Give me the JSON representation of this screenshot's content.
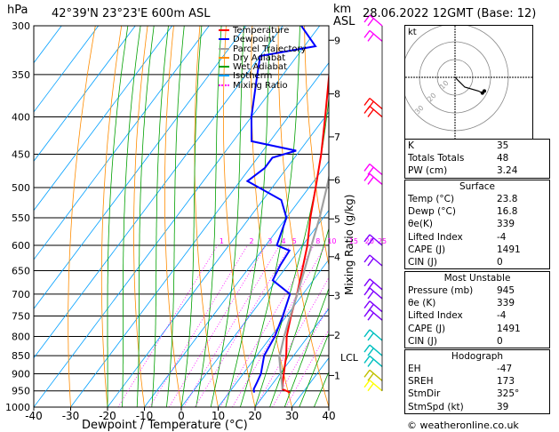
{
  "header": {
    "pressure_unit": "hPa",
    "station": "42°39'N  23°23'E  600m  ASL",
    "km_label": "km",
    "asl_label": "ASL",
    "date": "28.06.2022  12GMT  (Base: 12)"
  },
  "chart_data": {
    "type": "line",
    "title": "",
    "xlabel": "Dewpoint / Temperature (°C)",
    "ylabel": "hPa",
    "mixing_ratio_axis_label": "Mixing Ratio (g/kg)",
    "x_ticks": [
      -40,
      -30,
      -20,
      -10,
      0,
      10,
      20,
      30,
      40
    ],
    "y_ticks": [
      300,
      350,
      400,
      450,
      500,
      550,
      600,
      650,
      700,
      750,
      800,
      850,
      900,
      950,
      1000
    ],
    "xlim": [
      -40,
      40
    ],
    "ylim": [
      1000,
      300
    ],
    "y_scale": "log",
    "km_ticks": [
      {
        "label": "9",
        "p": 314
      },
      {
        "label": "8",
        "p": 372
      },
      {
        "label": "7",
        "p": 426
      },
      {
        "label": "6",
        "p": 488
      },
      {
        "label": "5",
        "p": 552
      },
      {
        "label": "4",
        "p": 622
      },
      {
        "label": "3",
        "p": 703
      },
      {
        "label": "2",
        "p": 797
      },
      {
        "label": "1",
        "p": 905
      }
    ],
    "lcl_label": "LCL",
    "lcl_p": 855,
    "mixing_ratio_labels": [
      "1",
      "2",
      "3",
      "4",
      "5",
      "8",
      "10",
      "15",
      "20",
      "25"
    ],
    "mixing_ratio_values": [
      1,
      2,
      3,
      4,
      5,
      8,
      10,
      15,
      20,
      25
    ],
    "legend": [
      "Temperature",
      "Dewpoint",
      "Parcel Trajectory",
      "Dry Adiabat",
      "Wet Adiabat",
      "Isotherm",
      "Mixing Ratio"
    ],
    "legend_colors": [
      "#ff0000",
      "#0000ff",
      "#a0a0a0",
      "#ff8c00",
      "#00a000",
      "#00a0ff",
      "#ff00ff"
    ],
    "series": [
      {
        "name": "Temperature",
        "color": "#ff0000",
        "points": [
          [
            955,
            26.5
          ],
          [
            945,
            23.8
          ],
          [
            925,
            22.5
          ],
          [
            900,
            21.0
          ],
          [
            850,
            18.0
          ],
          [
            800,
            14.2
          ],
          [
            750,
            11.2
          ],
          [
            700,
            8.4
          ],
          [
            650,
            5.0
          ],
          [
            600,
            1.3
          ],
          [
            550,
            -3.5
          ],
          [
            500,
            -8.2
          ],
          [
            450,
            -13.5
          ],
          [
            400,
            -20.0
          ],
          [
            350,
            -27.5
          ],
          [
            300,
            -35.5
          ]
        ]
      },
      {
        "name": "Dewpoint",
        "color": "#0000ff",
        "points": [
          [
            955,
            16.8
          ],
          [
            945,
            16.0
          ],
          [
            925,
            15.5
          ],
          [
            900,
            14.8
          ],
          [
            850,
            12.0
          ],
          [
            800,
            11.0
          ],
          [
            750,
            9.0
          ],
          [
            700,
            6.5
          ],
          [
            670,
            -1.0
          ],
          [
            640,
            -2.0
          ],
          [
            610,
            -2.5
          ],
          [
            600,
            -7.0
          ],
          [
            550,
            -10.0
          ],
          [
            520,
            -15.0
          ],
          [
            490,
            -28.0
          ],
          [
            470,
            -26.0
          ],
          [
            455,
            -26.0
          ],
          [
            445,
            -21.0
          ],
          [
            432,
            -35.0
          ],
          [
            400,
            -40.0
          ],
          [
            350,
            -47.0
          ],
          [
            330,
            -50.0
          ],
          [
            320,
            -37.0
          ],
          [
            300,
            -45.0
          ]
        ]
      },
      {
        "name": "Parcel Trajectory",
        "color": "#a0a0a0",
        "points": [
          [
            945,
            23.8
          ],
          [
            900,
            20.2
          ],
          [
            855,
            16.5
          ],
          [
            800,
            13.5
          ],
          [
            750,
            11.0
          ],
          [
            700,
            8.5
          ],
          [
            650,
            5.6
          ],
          [
            600,
            2.4
          ],
          [
            550,
            -1.0
          ],
          [
            500,
            -5.2
          ],
          [
            450,
            -10.0
          ],
          [
            400,
            -15.8
          ],
          [
            350,
            -23.0
          ],
          [
            300,
            -32.0
          ]
        ]
      }
    ]
  },
  "hodograph": {
    "label": "kt",
    "ring_labels": [
      "10",
      "20",
      "30"
    ],
    "points_uv": [
      [
        0,
        0
      ],
      [
        2,
        -2
      ],
      [
        5,
        -5
      ],
      [
        12,
        -7
      ],
      [
        14,
        -8
      ],
      [
        15,
        -7
      ]
    ]
  },
  "indices": {
    "rows": [
      {
        "label": "K",
        "value": "35"
      },
      {
        "label": "Totals Totals",
        "value": "48"
      },
      {
        "label": "PW (cm)",
        "value": "3.24"
      }
    ],
    "surface": {
      "title": "Surface",
      "rows": [
        {
          "label": "Temp (°C)",
          "value": "23.8"
        },
        {
          "label": "Dewp (°C)",
          "value": "16.8"
        },
        {
          "label": "θe(K)",
          "value": "339"
        },
        {
          "label": "Lifted Index",
          "value": "-4"
        },
        {
          "label": "CAPE (J)",
          "value": "1491"
        },
        {
          "label": "CIN (J)",
          "value": "0"
        }
      ]
    },
    "most_unstable": {
      "title": "Most Unstable",
      "rows": [
        {
          "label": "Pressure (mb)",
          "value": "945"
        },
        {
          "label": "θe (K)",
          "value": "339"
        },
        {
          "label": "Lifted Index",
          "value": "-4"
        },
        {
          "label": "CAPE (J)",
          "value": "1491"
        },
        {
          "label": "CIN (J)",
          "value": "0"
        }
      ]
    },
    "hodograph_box": {
      "title": "Hodograph",
      "rows": [
        {
          "label": "EH",
          "value": "-47"
        },
        {
          "label": "SREH",
          "value": "173"
        },
        {
          "label": "StmDir",
          "value": "325°"
        },
        {
          "label": "StmSpd (kt)",
          "value": "39"
        }
      ]
    }
  },
  "footer": {
    "credit": "© weatheronline.co.uk"
  },
  "wind_barbs": [
    {
      "p": 300,
      "color": "#ff00ff"
    },
    {
      "p": 315,
      "color": "#ff00ff"
    },
    {
      "p": 390,
      "color": "#ff0000"
    },
    {
      "p": 400,
      "color": "#ff0000"
    },
    {
      "p": 480,
      "color": "#ff00ff"
    },
    {
      "p": 495,
      "color": "#ff00ff"
    },
    {
      "p": 600,
      "color": "#8000ff"
    },
    {
      "p": 640,
      "color": "#8000ff"
    },
    {
      "p": 690,
      "color": "#8000ff"
    },
    {
      "p": 710,
      "color": "#8000ff"
    },
    {
      "p": 740,
      "color": "#8000ff"
    },
    {
      "p": 760,
      "color": "#8000ff"
    },
    {
      "p": 810,
      "color": "#00c0c0"
    },
    {
      "p": 850,
      "color": "#00c0c0"
    },
    {
      "p": 880,
      "color": "#00c0c0"
    },
    {
      "p": 920,
      "color": "#c0c000"
    },
    {
      "p": 950,
      "color": "#ffff00"
    }
  ]
}
